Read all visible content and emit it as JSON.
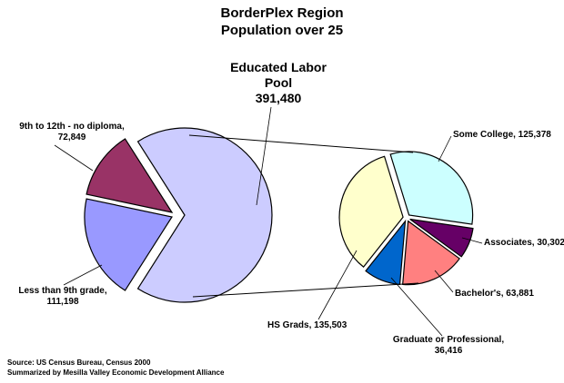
{
  "chart_data": {
    "type": "pie",
    "title": "BorderPlex Region",
    "subtitle": "Population over 25",
    "main_pie": {
      "slices": [
        {
          "label": "9th to 12th - no diploma,",
          "value": 72849,
          "value_text": "72,849",
          "color": "#993366"
        },
        {
          "label": "Less than 9th grade,",
          "value": 111198,
          "value_text": "111,198",
          "color": "#9999FF"
        },
        {
          "label": "Educated Labor Pool",
          "value": 391480,
          "value_text": "391,480",
          "color": "#CCCCFF"
        }
      ]
    },
    "breakout_pie": {
      "slices": [
        {
          "label": "Some College, 125,378",
          "value": 125378,
          "color": "#CCFFFF"
        },
        {
          "label": "Associates, 30,302",
          "value": 30302,
          "color": "#660066"
        },
        {
          "label": "Bachelor's, 63,881",
          "value": 63881,
          "color": "#FF8080"
        },
        {
          "label": "Graduate or Professional,",
          "value": 36416,
          "value_text": "36,416",
          "color": "#0066CC"
        },
        {
          "label": "HS Grads, 135,503",
          "value": 135503,
          "color": "#FFFFCC"
        }
      ]
    }
  },
  "educated_pool": {
    "line1": "Educated Labor",
    "line2": "Pool",
    "value": "391,480"
  },
  "source_line1": "Source: US Census Bureau, Census 2000",
  "source_line2": "Summarized by Mesilla Valley Economic Development Alliance"
}
